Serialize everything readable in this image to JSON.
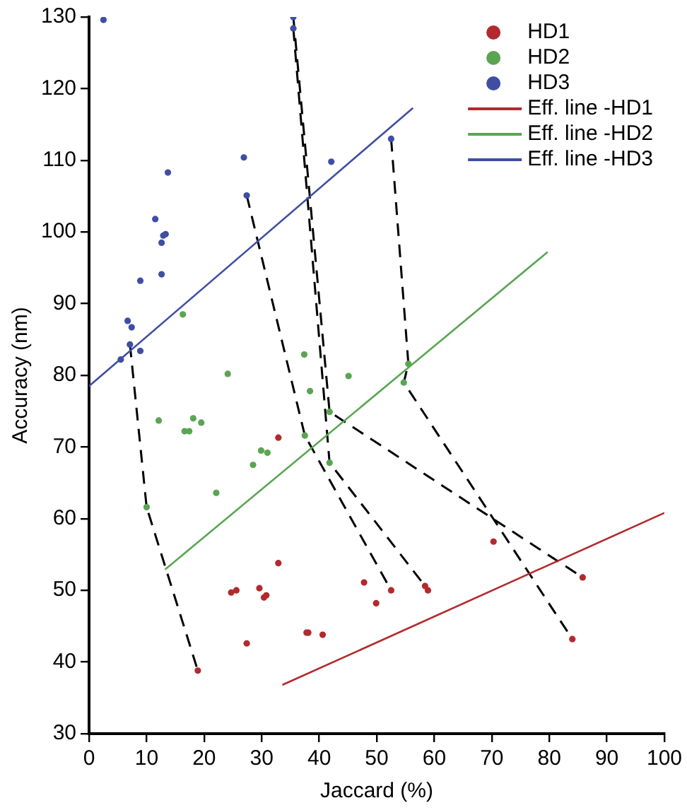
{
  "chart_data": {
    "type": "scatter",
    "xlabel": "Jaccard (%)",
    "ylabel": "Accuracy (nm)",
    "xlim": [
      0,
      100
    ],
    "xticks": [
      0,
      10,
      20,
      30,
      40,
      50,
      60,
      70,
      80,
      90,
      100
    ],
    "ylim": [
      30,
      130
    ],
    "yticks": [
      30,
      40,
      50,
      60,
      70,
      80,
      90,
      100,
      110,
      120,
      130
    ],
    "grid": false,
    "legend": "top right",
    "marker": "circle",
    "series": [
      {
        "name": "HD1",
        "color": "#b22a2e",
        "x": [
          32.9,
          32.9,
          24.7,
          25.6,
          29.6,
          30.4,
          30.8,
          27.4,
          37.8,
          38.1,
          40.6,
          18.9,
          70.3,
          47.8,
          52.5,
          49.9,
          58.4,
          58.9,
          85.8,
          84.0
        ],
        "values": [
          71.3,
          53.8,
          49.7,
          50.0,
          50.3,
          49.0,
          49.3,
          42.6,
          44.1,
          44.1,
          43.8,
          38.8,
          56.8,
          51.1,
          50.0,
          48.2,
          50.6,
          50.0,
          51.8,
          43.2
        ]
      },
      {
        "name": "HD2",
        "color": "#5aa552",
        "x": [
          16.3,
          24.1,
          37.4,
          45.1,
          38.4,
          12.1,
          18.1,
          16.6,
          17.4,
          19.5,
          41.8,
          37.5,
          29.9,
          31.0,
          28.5,
          41.8,
          22.1,
          10.0,
          55.5,
          54.7
        ],
        "values": [
          88.5,
          80.2,
          82.9,
          79.9,
          77.8,
          73.7,
          74.0,
          72.2,
          72.2,
          73.4,
          74.9,
          71.6,
          69.5,
          69.2,
          67.5,
          67.8,
          63.6,
          61.6,
          81.6,
          79.0
        ]
      },
      {
        "name": "HD3",
        "color": "#3f4ea3",
        "x": [
          2.5,
          35.5,
          35.5,
          26.9,
          42.1,
          13.7,
          27.4,
          11.5,
          13.3,
          12.9,
          12.6,
          12.6,
          8.9,
          6.7,
          7.4,
          7.1,
          8.9,
          5.5,
          52.5
        ],
        "values": [
          129.6,
          130,
          128.4,
          110.4,
          109.8,
          108.3,
          105.1,
          101.8,
          99.7,
          99.5,
          98.5,
          94.1,
          93.2,
          87.6,
          86.7,
          84.3,
          83.4,
          82.2,
          113.0
        ]
      },
      {
        "name": "Eff. line -HD1",
        "type": "line",
        "marker": "none",
        "color": "#b22a2e",
        "x": [
          33.6,
          100
        ],
        "values": [
          36.8,
          60.8
        ]
      },
      {
        "name": "Eff. line -HD2",
        "type": "line",
        "marker": "none",
        "color": "#5aa552",
        "x": [
          13.2,
          79.7
        ],
        "values": [
          52.9,
          97.2
        ]
      },
      {
        "name": "Eff. line -HD3",
        "type": "line",
        "marker": "none",
        "color": "#3f4ea3",
        "x": [
          0,
          56.3
        ],
        "values": [
          78.5,
          117.3
        ]
      },
      {
        "type": "line",
        "marker": "none",
        "line_style": "dashed",
        "color": "#000000",
        "x": [
          7.1,
          10.0,
          18.9
        ],
        "values": [
          84.3,
          61.6,
          38.8
        ]
      },
      {
        "type": "line",
        "marker": "none",
        "line_style": "dashed",
        "color": "#000000",
        "x": [
          27.4,
          37.5,
          52.5
        ],
        "values": [
          105.1,
          71.6,
          50.0
        ]
      },
      {
        "type": "line",
        "marker": "none",
        "line_style": "dashed",
        "color": "#000000",
        "x": [
          35.5,
          41.8,
          58.4
        ],
        "values": [
          128.4,
          67.8,
          50.6
        ]
      },
      {
        "type": "line",
        "marker": "none",
        "line_style": "dashed",
        "color": "#000000",
        "x": [
          35.5,
          41.8,
          85.8
        ],
        "values": [
          130,
          74.9,
          51.8
        ]
      },
      {
        "type": "line",
        "marker": "none",
        "line_style": "dashed",
        "color": "#000000",
        "x": [
          52.5,
          55.5,
          54.7,
          84.0
        ],
        "values": [
          113.0,
          81.6,
          79.0,
          43.2
        ]
      }
    ]
  }
}
